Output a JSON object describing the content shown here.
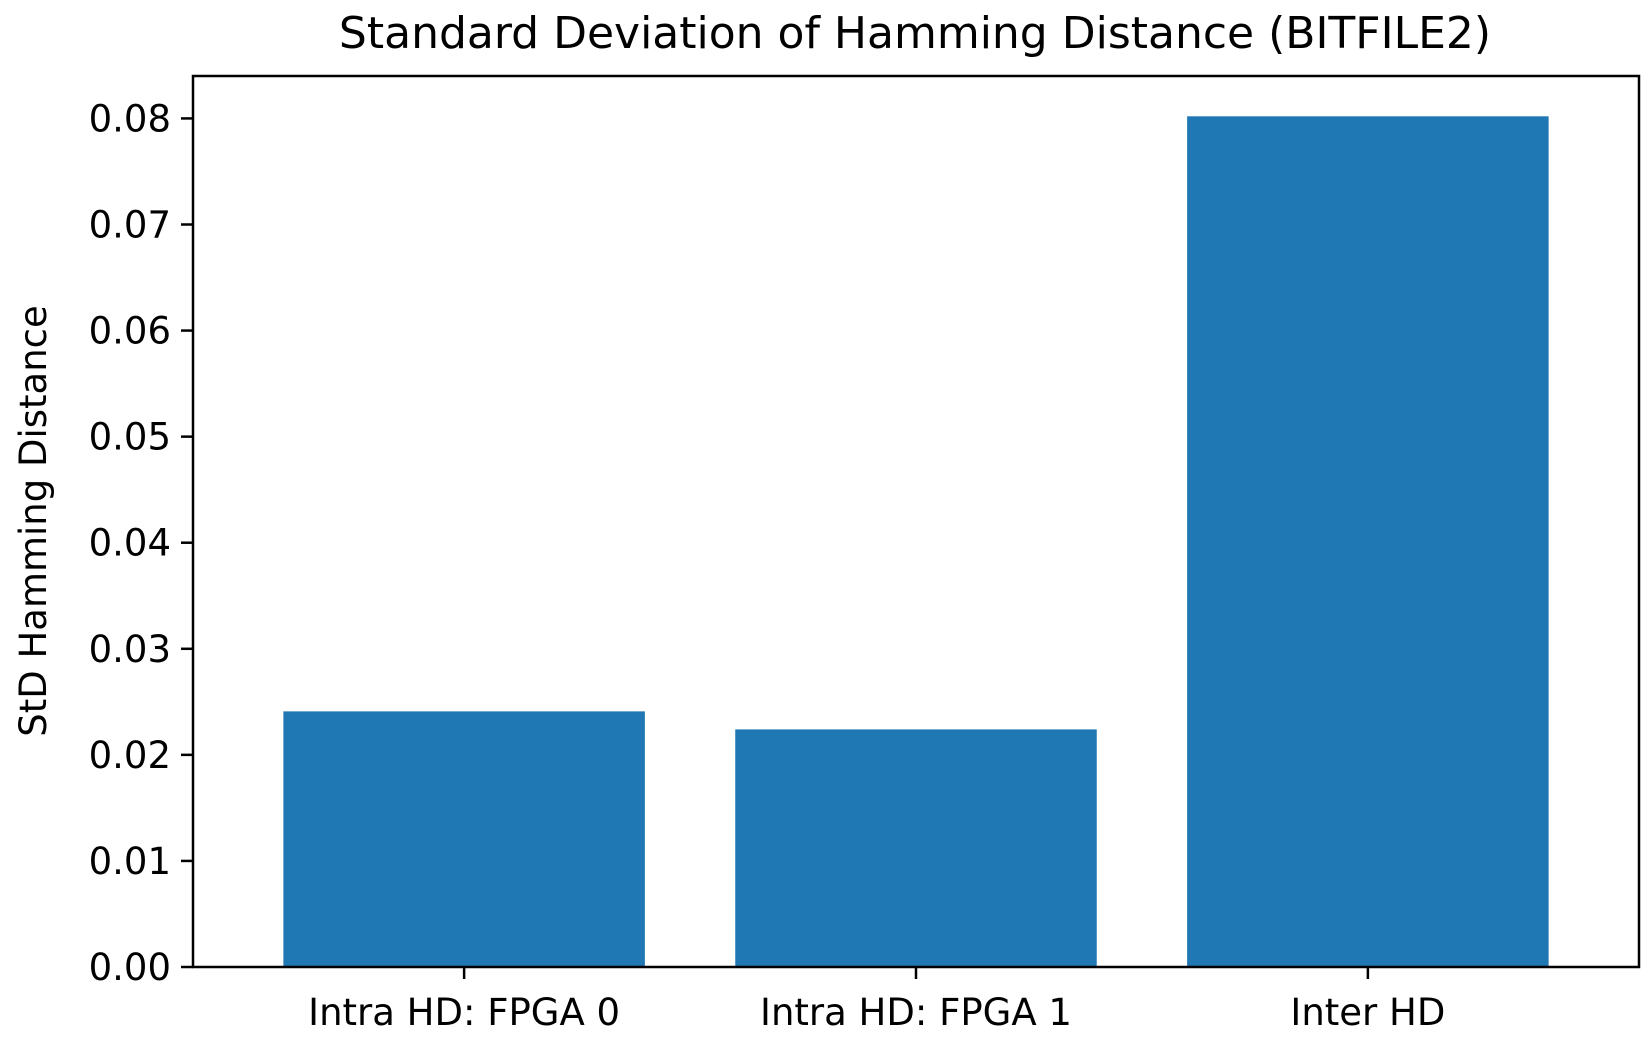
{
  "chart_data": {
    "type": "bar",
    "title": "Standard Deviation of Hamming Distance (BITFILE2)",
    "xlabel": "",
    "ylabel": "StD Hamming Distance",
    "categories": [
      "Intra HD: FPGA 0",
      "Intra HD: FPGA 1",
      "Inter HD"
    ],
    "values": [
      0.0241,
      0.0224,
      0.0802
    ],
    "ylim": [
      0,
      0.084
    ],
    "yticks": [
      "0.00",
      "0.01",
      "0.02",
      "0.03",
      "0.04",
      "0.05",
      "0.06",
      "0.07",
      "0.08"
    ],
    "bar_color": "#1f77b4",
    "grid": false,
    "legend": "none"
  }
}
